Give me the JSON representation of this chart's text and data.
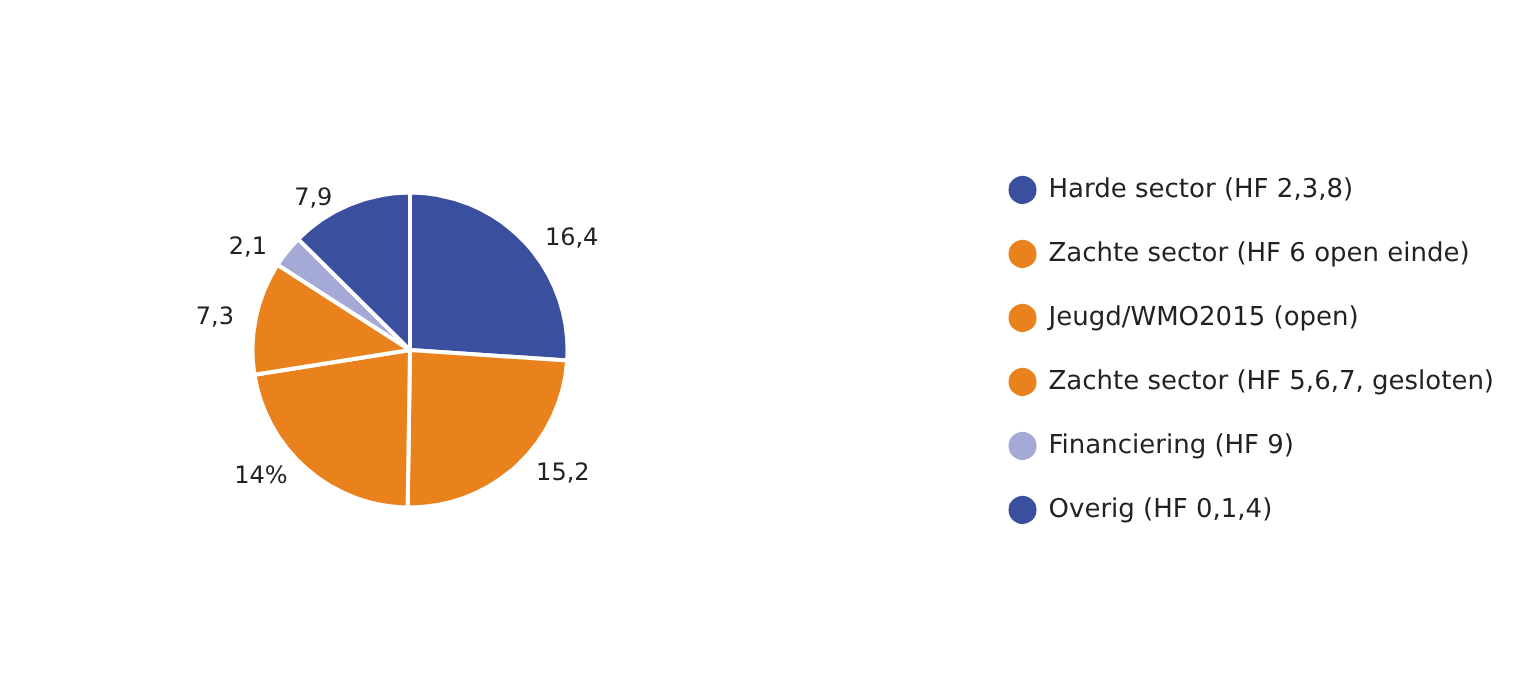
{
  "chart_data": {
    "type": "pie",
    "categories": [
      "Harde sector (HF 2,3,8)",
      "Zachte sector (HF 6 open einde)",
      "Jeugd/WMO2015 (open)",
      "Zachte sector (HF 5,6,7, gesloten)",
      "Financiering (HF 9)",
      "Overig (HF 0,1,4)"
    ],
    "values": [
      16.4,
      15.2,
      14,
      7.3,
      2.1,
      7.9
    ],
    "value_labels": [
      "16,4",
      "15,2",
      "14%",
      "7,3",
      "2,1",
      "7,9"
    ],
    "colors": [
      "#3a4f9e",
      "#e9821c",
      "#e9821c",
      "#e9821c",
      "#a4aad5",
      "#3a4f9e"
    ],
    "legend": "right"
  }
}
